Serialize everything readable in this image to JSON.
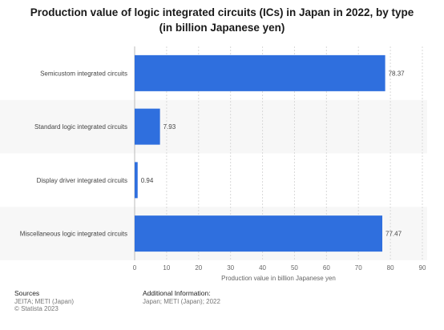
{
  "chart_data": {
    "type": "bar",
    "orientation": "horizontal",
    "title": "Production value of logic integrated circuits (ICs) in Japan in 2022, by type (in billion Japanese yen)",
    "categories": [
      "Semicustom integrated circuits",
      "Standard logic integrated circuits",
      "Display driver integrated circuits",
      "Miscellaneous logic integrated circuits"
    ],
    "values": [
      78.37,
      7.93,
      0.94,
      77.47
    ],
    "value_labels": [
      "78.37",
      "7.93",
      "0.94",
      "77.47"
    ],
    "xlabel": "Production value in billion Japanese yen",
    "ylabel": "",
    "xlim": [
      0,
      90
    ],
    "ticks": [
      "0",
      "10",
      "20",
      "30",
      "40",
      "50",
      "60",
      "70",
      "80",
      "90"
    ],
    "grid": true,
    "bar_color": "#2f6fde",
    "band_color": "#f7f7f7"
  },
  "footer": {
    "sources_heading": "Sources",
    "sources_lines": [
      "JEITA; METI (Japan)",
      "© Statista 2023"
    ],
    "info_heading": "Additional Information:",
    "info_lines": [
      "Japan; METI (Japan); 2022"
    ]
  }
}
